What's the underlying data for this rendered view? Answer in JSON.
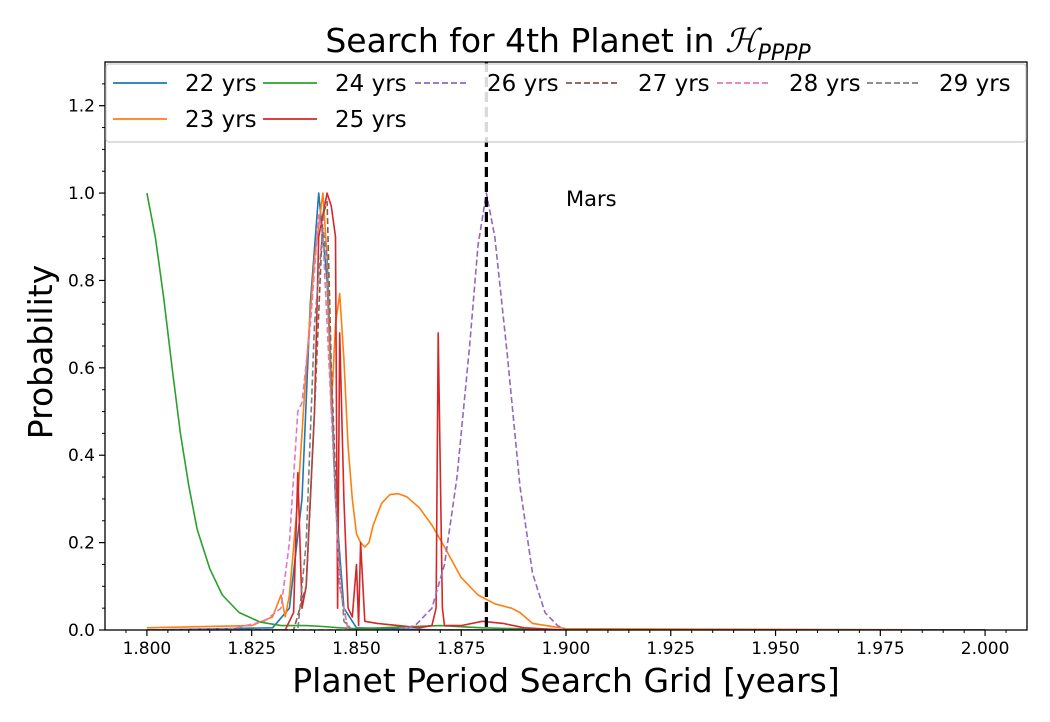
{
  "chart_data": {
    "type": "line",
    "title": "Search for 4th Planet in ",
    "title_math": "ℋ",
    "title_subscript": "PPPP",
    "xlabel": "Planet Period Search Grid [years]",
    "ylabel": "Probability",
    "xlim": [
      1.79,
      2.01
    ],
    "ylim": [
      0.0,
      1.3
    ],
    "xticks": [
      "1.800",
      "1.825",
      "1.850",
      "1.875",
      "1.900",
      "1.925",
      "1.950",
      "1.975",
      "2.000"
    ],
    "yticks": [
      "0.0",
      "0.2",
      "0.4",
      "0.6",
      "0.8",
      "1.0",
      "1.2"
    ],
    "legend_placement": "top",
    "grid": false,
    "annotation": {
      "text": "Mars",
      "x": 1.9,
      "y": 0.97
    },
    "reference_line": {
      "x": 1.881,
      "style": "dashed",
      "color": "#000000"
    },
    "series": [
      {
        "name": "22 yrs",
        "color": "#1f77b4",
        "dash": "solid",
        "points": [
          [
            1.8,
            0
          ],
          [
            1.83,
            0.005
          ],
          [
            1.834,
            0.05
          ],
          [
            1.837,
            0.3
          ],
          [
            1.839,
            0.75
          ],
          [
            1.841,
            1.0
          ],
          [
            1.843,
            0.8
          ],
          [
            1.845,
            0.3
          ],
          [
            1.847,
            0.05
          ],
          [
            1.85,
            0.005
          ],
          [
            1.87,
            0
          ],
          [
            2.0,
            0
          ]
        ]
      },
      {
        "name": "23 yrs",
        "color": "#ff7f0e",
        "dash": "solid",
        "points": [
          [
            1.8,
            0.005
          ],
          [
            1.825,
            0.01
          ],
          [
            1.83,
            0.03
          ],
          [
            1.832,
            0.08
          ],
          [
            1.833,
            0.03
          ],
          [
            1.834,
            0.08
          ],
          [
            1.836,
            0.3
          ],
          [
            1.838,
            0.6
          ],
          [
            1.84,
            0.85
          ],
          [
            1.842,
            1.0
          ],
          [
            1.843,
            0.85
          ],
          [
            1.844,
            0.5
          ],
          [
            1.845,
            0.7
          ],
          [
            1.846,
            0.77
          ],
          [
            1.847,
            0.62
          ],
          [
            1.848,
            0.42
          ],
          [
            1.849,
            0.3
          ],
          [
            1.85,
            0.22
          ],
          [
            1.851,
            0.2
          ],
          [
            1.852,
            0.19
          ],
          [
            1.853,
            0.2
          ],
          [
            1.854,
            0.24
          ],
          [
            1.856,
            0.29
          ],
          [
            1.858,
            0.31
          ],
          [
            1.86,
            0.312
          ],
          [
            1.862,
            0.305
          ],
          [
            1.865,
            0.28
          ],
          [
            1.868,
            0.24
          ],
          [
            1.871,
            0.19
          ],
          [
            1.875,
            0.12
          ],
          [
            1.879,
            0.08
          ],
          [
            1.883,
            0.06
          ],
          [
            1.887,
            0.05
          ],
          [
            1.889,
            0.04
          ],
          [
            1.892,
            0.015
          ],
          [
            1.9,
            0.003
          ],
          [
            2.0,
            0
          ]
        ]
      },
      {
        "name": "24 yrs",
        "color": "#2ca02c",
        "dash": "solid",
        "points": [
          [
            1.8,
            1.0
          ],
          [
            1.802,
            0.9
          ],
          [
            1.804,
            0.76
          ],
          [
            1.806,
            0.6
          ],
          [
            1.808,
            0.45
          ],
          [
            1.81,
            0.33
          ],
          [
            1.812,
            0.23
          ],
          [
            1.815,
            0.14
          ],
          [
            1.818,
            0.08
          ],
          [
            1.822,
            0.04
          ],
          [
            1.827,
            0.018
          ],
          [
            1.832,
            0.01
          ],
          [
            1.838,
            0.01
          ],
          [
            1.842,
            0.008
          ],
          [
            1.846,
            0.005
          ],
          [
            1.85,
            0.003
          ],
          [
            1.87,
            0.01
          ],
          [
            1.88,
            0.005
          ],
          [
            1.9,
            0
          ],
          [
            2.0,
            0
          ]
        ]
      },
      {
        "name": "25 yrs",
        "color": "#d62728",
        "dash": "solid",
        "points": [
          [
            1.8,
            0
          ],
          [
            1.833,
            0
          ],
          [
            1.835,
            0.04
          ],
          [
            1.836,
            0.36
          ],
          [
            1.837,
            0.05
          ],
          [
            1.838,
            0.1
          ],
          [
            1.84,
            0.5
          ],
          [
            1.841,
            0.9
          ],
          [
            1.842,
            0.95
          ],
          [
            1.843,
            1.0
          ],
          [
            1.844,
            0.97
          ],
          [
            1.845,
            0.9
          ],
          [
            1.8455,
            0.05
          ],
          [
            1.846,
            0.68
          ],
          [
            1.847,
            0.3
          ],
          [
            1.848,
            0.05
          ],
          [
            1.849,
            0.03
          ],
          [
            1.85,
            0.15
          ],
          [
            1.8505,
            0.01
          ],
          [
            1.851,
            0.2
          ],
          [
            1.852,
            0.02
          ],
          [
            1.855,
            0.015
          ],
          [
            1.86,
            0.01
          ],
          [
            1.865,
            0.005
          ],
          [
            1.868,
            0.01
          ],
          [
            1.869,
            0.05
          ],
          [
            1.8695,
            0.68
          ],
          [
            1.8705,
            0.05
          ],
          [
            1.871,
            0.01
          ],
          [
            1.875,
            0.01
          ],
          [
            1.88,
            0.02
          ],
          [
            1.885,
            0.015
          ],
          [
            1.89,
            0.005
          ],
          [
            1.9,
            0
          ],
          [
            2.0,
            0
          ]
        ]
      },
      {
        "name": "26 yrs",
        "color": "#9467bd",
        "dash": "dashed",
        "points": [
          [
            1.8,
            0
          ],
          [
            1.86,
            0
          ],
          [
            1.864,
            0.01
          ],
          [
            1.868,
            0.05
          ],
          [
            1.871,
            0.15
          ],
          [
            1.874,
            0.35
          ],
          [
            1.877,
            0.65
          ],
          [
            1.879,
            0.88
          ],
          [
            1.881,
            1.0
          ],
          [
            1.883,
            0.9
          ],
          [
            1.886,
            0.63
          ],
          [
            1.889,
            0.33
          ],
          [
            1.892,
            0.13
          ],
          [
            1.895,
            0.04
          ],
          [
            1.898,
            0.01
          ],
          [
            1.9,
            0
          ],
          [
            2.0,
            0
          ]
        ]
      },
      {
        "name": "27 yrs",
        "color": "#8c564b",
        "dash": "dashed",
        "points": [
          [
            1.8,
            0
          ],
          [
            1.835,
            0
          ],
          [
            1.838,
            0.1
          ],
          [
            1.84,
            0.5
          ],
          [
            1.842,
            0.95
          ],
          [
            1.843,
            0.98
          ],
          [
            1.844,
            0.6
          ],
          [
            1.846,
            0.1
          ],
          [
            1.848,
            0
          ],
          [
            2.0,
            0
          ]
        ]
      },
      {
        "name": "28 yrs",
        "color": "#e377c2",
        "dash": "dashed",
        "points": [
          [
            1.8,
            0
          ],
          [
            1.82,
            0.002
          ],
          [
            1.828,
            0.02
          ],
          [
            1.832,
            0.05
          ],
          [
            1.834,
            0.2
          ],
          [
            1.836,
            0.5
          ],
          [
            1.837,
            0.52
          ],
          [
            1.839,
            0.7
          ],
          [
            1.841,
            0.95
          ],
          [
            1.842,
            0.9
          ],
          [
            1.844,
            0.5
          ],
          [
            1.846,
            0.1
          ],
          [
            1.848,
            0
          ],
          [
            2.0,
            0
          ]
        ]
      },
      {
        "name": "29 yrs",
        "color": "#7f7f7f",
        "dash": "dashed",
        "points": [
          [
            1.8,
            0
          ],
          [
            1.836,
            0
          ],
          [
            1.838,
            0.2
          ],
          [
            1.84,
            0.7
          ],
          [
            1.842,
            0.92
          ],
          [
            1.843,
            0.85
          ],
          [
            1.845,
            0.3
          ],
          [
            1.847,
            0.02
          ],
          [
            1.849,
            0
          ],
          [
            2.0,
            0
          ]
        ]
      }
    ]
  }
}
